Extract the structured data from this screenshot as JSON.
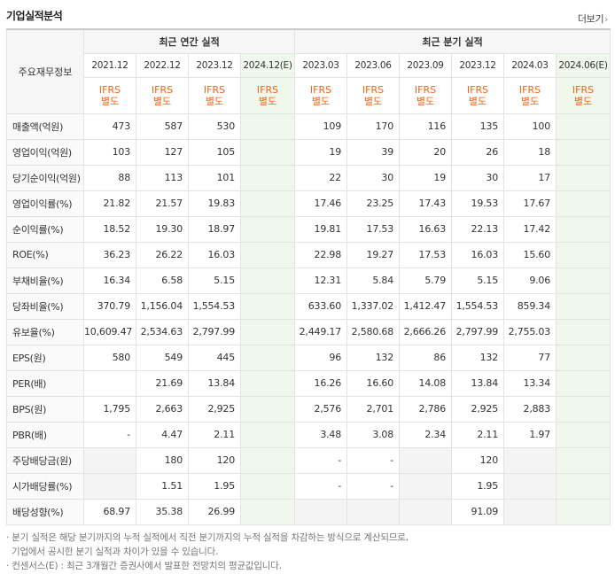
{
  "header": {
    "title": "기업실적분석",
    "more_label": "더보기"
  },
  "table": {
    "corner_label": "주요재무정보",
    "group_annual": "최근 연간 실적",
    "group_quarter": "최근 분기 실적",
    "periods": [
      "2021.12",
      "2022.12",
      "2023.12",
      "2024.12(E)",
      "2023.03",
      "2023.06",
      "2023.09",
      "2023.12",
      "2024.03",
      "2024.06(E)"
    ],
    "ifrs_line1": "IFRS",
    "ifrs_line2": "별도",
    "rows": [
      {
        "label": "매출액(억원)",
        "values": [
          "473",
          "587",
          "530",
          "",
          "109",
          "170",
          "116",
          "135",
          "100",
          ""
        ]
      },
      {
        "label": "영업이익(억원)",
        "values": [
          "103",
          "127",
          "105",
          "",
          "19",
          "39",
          "20",
          "26",
          "18",
          ""
        ]
      },
      {
        "label": "당기순이익(억원)",
        "values": [
          "88",
          "113",
          "101",
          "",
          "22",
          "30",
          "19",
          "30",
          "17",
          ""
        ]
      },
      {
        "label": "영업이익률(%)",
        "values": [
          "21.82",
          "21.57",
          "19.83",
          "",
          "17.46",
          "23.25",
          "17.43",
          "19.53",
          "17.67",
          ""
        ]
      },
      {
        "label": "순이익률(%)",
        "values": [
          "18.52",
          "19.30",
          "18.97",
          "",
          "19.81",
          "17.53",
          "16.63",
          "22.13",
          "17.42",
          ""
        ]
      },
      {
        "label": "ROE(%)",
        "values": [
          "36.23",
          "26.22",
          "16.03",
          "",
          "22.98",
          "19.27",
          "17.53",
          "16.03",
          "15.60",
          ""
        ]
      },
      {
        "label": "부채비율(%)",
        "values": [
          "16.34",
          "6.58",
          "5.15",
          "",
          "12.31",
          "5.84",
          "5.79",
          "5.15",
          "9.06",
          ""
        ]
      },
      {
        "label": "당좌비율(%)",
        "values": [
          "370.79",
          "1,156.04",
          "1,554.53",
          "",
          "633.60",
          "1,337.02",
          "1,412.47",
          "1,554.53",
          "859.34",
          ""
        ]
      },
      {
        "label": "유보율(%)",
        "values": [
          "10,609.47",
          "2,534.63",
          "2,797.99",
          "",
          "2,449.17",
          "2,580.68",
          "2,666.26",
          "2,797.99",
          "2,755.03",
          ""
        ]
      },
      {
        "label": "EPS(원)",
        "values": [
          "580",
          "549",
          "445",
          "",
          "96",
          "132",
          "86",
          "132",
          "77",
          ""
        ]
      },
      {
        "label": "PER(배)",
        "values": [
          "",
          "21.69",
          "13.84",
          "",
          "16.26",
          "16.60",
          "14.08",
          "13.84",
          "13.34",
          ""
        ]
      },
      {
        "label": "BPS(원)",
        "values": [
          "1,795",
          "2,663",
          "2,925",
          "",
          "2,576",
          "2,701",
          "2,786",
          "2,925",
          "2,883",
          ""
        ]
      },
      {
        "label": "PBR(배)",
        "values": [
          "-",
          "4.47",
          "2.11",
          "",
          "3.48",
          "3.08",
          "2.34",
          "2.11",
          "1.97",
          ""
        ]
      },
      {
        "label": "주당배당금(원)",
        "values": [
          "",
          "180",
          "120",
          "",
          "-",
          "-",
          "",
          "120",
          "",
          ""
        ]
      },
      {
        "label": "시가배당률(%)",
        "values": [
          "",
          "1.51",
          "1.95",
          "",
          "-",
          "-",
          "",
          "1.95",
          "",
          ""
        ]
      },
      {
        "label": "배당성향(%)",
        "values": [
          "68.97",
          "35.38",
          "26.99",
          "",
          "",
          "",
          "",
          "91.09",
          "",
          ""
        ]
      }
    ]
  },
  "notes": {
    "line1": "· 분기 실적은 해당 분기까지의 누적 실적에서 직전 분기까지의 누적 실적을 차감하는 방식으로 계산되므로,",
    "line2": "  기업에서 공시한 분기 실적과 차이가 있을 수 있습니다.",
    "line3": "· 컨센서스(E) : 최근 3개월간 증권사에서 발표한 전망치의 평균값입니다."
  },
  "colors": {
    "ifrs": "#f06414",
    "estimate_bg": "#f0f8ee",
    "header_bg": "#f6f6f6"
  }
}
